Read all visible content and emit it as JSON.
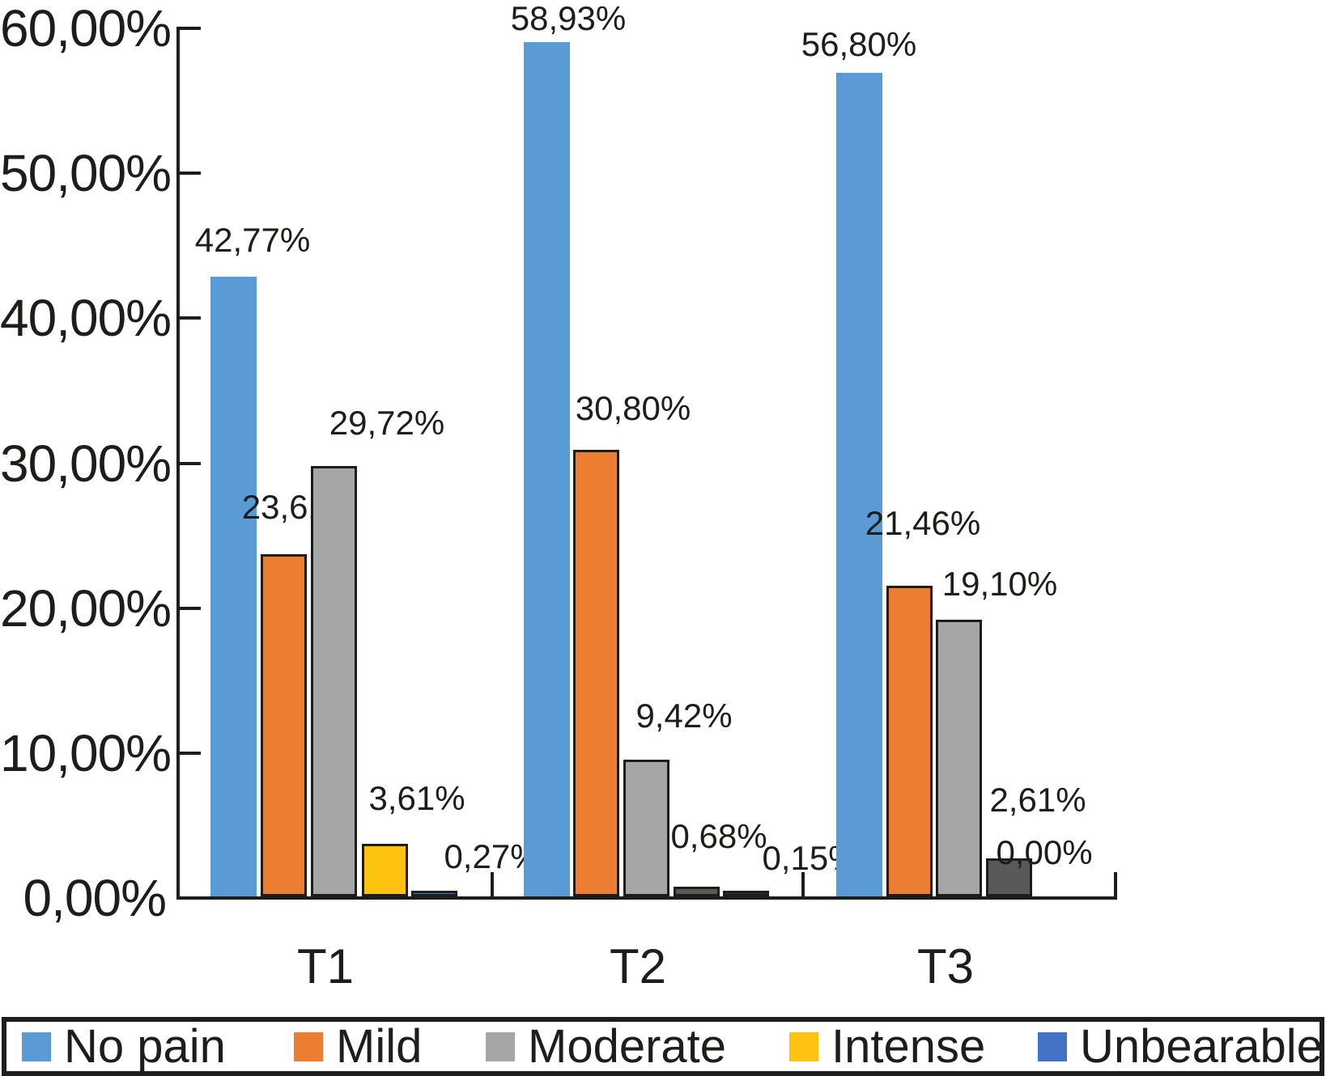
{
  "chart_data": {
    "type": "bar",
    "title": "",
    "categories": [
      "T1",
      "T2",
      "T3"
    ],
    "series": [
      {
        "name": "No pain",
        "color": "#5B9BD5",
        "values": [
          42.77,
          58.93,
          56.8
        ],
        "labels": [
          "42,77%",
          "58,93%",
          "56,80%"
        ]
      },
      {
        "name": "Mild",
        "color": "#ED7D31",
        "values": [
          23.61,
          30.8,
          21.46
        ],
        "labels": [
          "23,61%",
          "30,80%",
          "21,46%"
        ]
      },
      {
        "name": "Moderate",
        "color": "#A6A6A6",
        "values": [
          29.72,
          9.42,
          19.1
        ],
        "labels": [
          "29,72%",
          "9,42%",
          "19,10%"
        ]
      },
      {
        "name": "Intense",
        "color": "#FEC210",
        "values": [
          3.61,
          0.68,
          2.61
        ],
        "labels": [
          "3,61%",
          "0,68%",
          "2,61%"
        ],
        "bar_fills": [
          "#FEC210",
          "#595959",
          "#595959"
        ]
      },
      {
        "name": "Unbearable",
        "color": "#4472C4",
        "values": [
          0.27,
          0.15,
          0.0
        ],
        "labels": [
          "0,27%",
          "0,15%",
          "0,00%"
        ],
        "bar_fills": [
          "#4472C4",
          "#303030",
          null
        ]
      }
    ],
    "y_ticks": [
      "0,00%",
      "10,00%",
      "20,00%",
      "30,00%",
      "40,00%",
      "50,00%",
      "60,00%"
    ],
    "ylim": [
      0,
      60
    ],
    "grid": "off",
    "legend_position": "bottom",
    "axis_color": "#1d1d1b",
    "text_color": "#1d1d1b"
  }
}
